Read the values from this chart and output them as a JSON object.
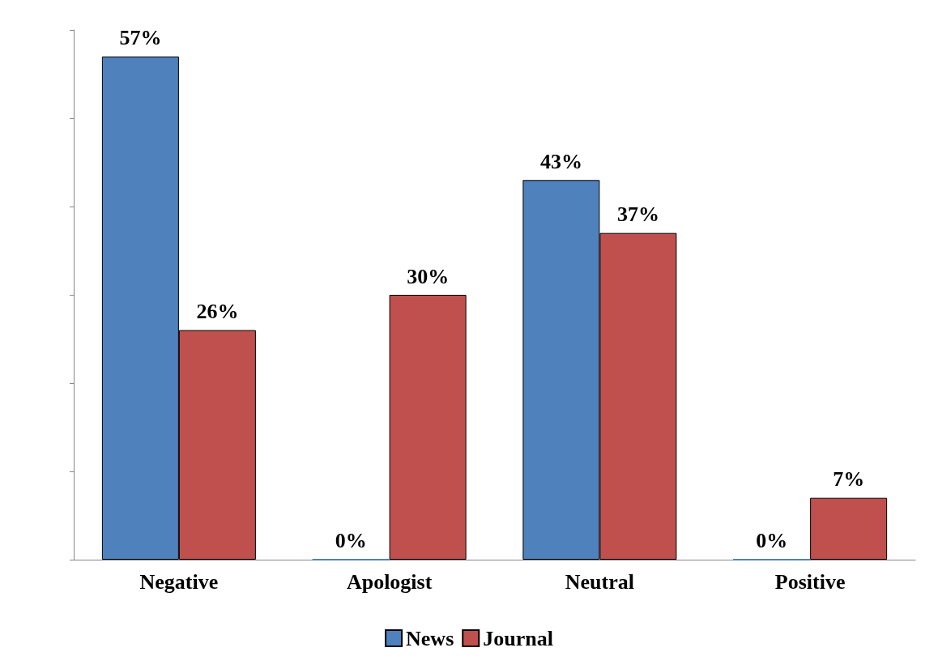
{
  "chart_data": {
    "type": "bar",
    "categories": [
      "Negative",
      "Apologist",
      "Neutral",
      "Positive"
    ],
    "series": [
      {
        "name": "News",
        "color": "#4f81bd",
        "values": [
          57,
          0,
          43,
          0
        ],
        "value_labels": [
          "57%",
          "0%",
          "43%",
          "0%"
        ]
      },
      {
        "name": "Journal",
        "color": "#c0504d",
        "values": [
          26,
          30,
          37,
          7
        ],
        "value_labels": [
          "26%",
          "30%",
          "37%",
          "7%"
        ]
      }
    ],
    "ylim": [
      0,
      60
    ],
    "yticks": [
      {
        "value": 0,
        "label": null
      },
      {
        "value": 10,
        "label": null
      },
      {
        "value": 20,
        "label": null
      },
      {
        "value": 30,
        "label": null
      },
      {
        "value": 40,
        "label": null
      },
      {
        "value": 50,
        "label": null
      },
      {
        "value": 60,
        "label": null
      }
    ],
    "tick_labels": "x",
    "grid": false,
    "legend": "bottom"
  }
}
